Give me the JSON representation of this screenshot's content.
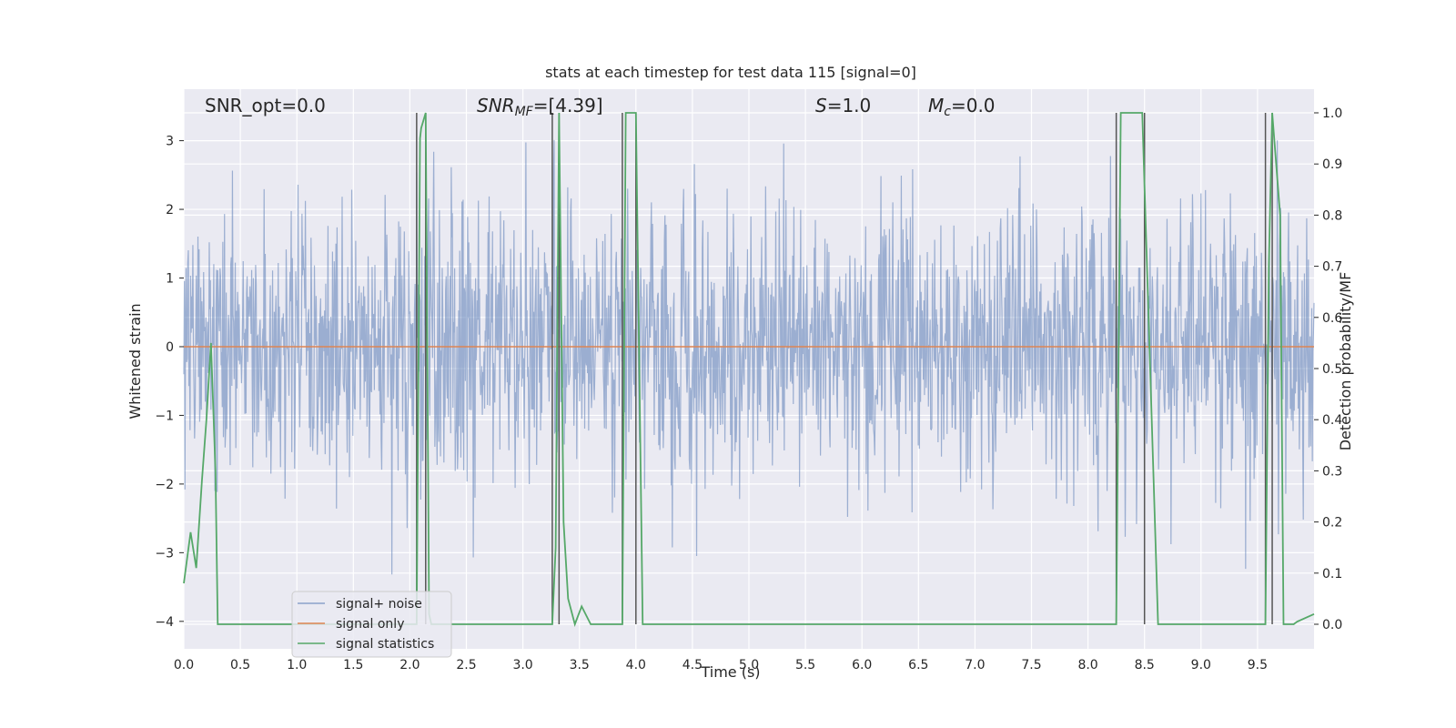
{
  "chart_data": {
    "type": "line",
    "title": "stats at each timestep for test data 115 [signal=0]",
    "xlabel": "Time (s)",
    "ylabel": "Whitened strain",
    "y2label": "Detection probability/MF",
    "xlim": [
      0.0,
      10.0
    ],
    "ylim": [
      -4.4,
      3.75
    ],
    "y2lim": [
      -0.048,
      1.0
    ],
    "x_ticks": [
      "0.0",
      "0.5",
      "1.0",
      "1.5",
      "2.0",
      "2.5",
      "3.0",
      "3.5",
      "4.0",
      "4.5",
      "5.0",
      "5.5",
      "6.0",
      "6.5",
      "7.0",
      "7.5",
      "8.0",
      "8.5",
      "9.0",
      "9.5"
    ],
    "y_ticks": [
      "3",
      "2",
      "1",
      "0",
      "−1",
      "−2",
      "−3",
      "−4"
    ],
    "y2_ticks": [
      "1.0",
      "0.9",
      "0.8",
      "0.7",
      "0.6",
      "0.5",
      "0.4",
      "0.3",
      "0.2",
      "0.1",
      "0.0"
    ],
    "grid": true,
    "legend_position": "lower-left",
    "colors": {
      "background": "#eaeaf2",
      "noise": "#4c72b0",
      "signal": "#dd8452",
      "stats": "#55a868",
      "vlines": "#555555"
    },
    "annotations": {
      "snr_opt": "SNR_opt=0.0",
      "snr_mf_base": "SNR",
      "snr_mf_sub": "MF",
      "snr_mf_value": "=[4.39]",
      "s_sym": "S",
      "s_value": "=1.0",
      "mc_sym": "M",
      "mc_sub": "c",
      "mc_value": "=0.0"
    },
    "series": [
      {
        "name": "signal+ noise",
        "axis": "left",
        "note": "whitened strain noise, approx. Gaussian, range about -4 to 3.2",
        "sample_rate": 200,
        "std": 1.0
      },
      {
        "name": "signal only",
        "axis": "left",
        "x": [
          0.0,
          10.0
        ],
        "y": [
          0.0,
          0.0
        ]
      },
      {
        "name": "signal statistics",
        "axis": "right",
        "x": [
          0.0,
          0.06,
          0.11,
          0.16,
          0.2,
          0.24,
          0.28,
          0.3,
          2.06,
          2.09,
          2.1,
          2.14,
          2.17,
          2.19,
          3.26,
          3.29,
          3.32,
          3.36,
          3.4,
          3.46,
          3.52,
          3.6,
          3.88,
          3.91,
          3.94,
          4.0,
          4.06,
          8.25,
          8.29,
          8.48,
          8.62,
          9.57,
          9.6,
          9.63,
          9.7,
          9.73,
          9.78,
          9.82,
          9.85,
          10.0
        ],
        "y": [
          0.08,
          0.18,
          0.11,
          0.28,
          0.4,
          0.55,
          0.3,
          0.0,
          0.0,
          0.95,
          0.97,
          1.0,
          0.02,
          0.0,
          0.0,
          0.15,
          1.0,
          0.2,
          0.05,
          0.0,
          0.035,
          0.0,
          0.0,
          1.0,
          1.0,
          1.0,
          0.0,
          0.0,
          1.0,
          1.0,
          0.0,
          0.0,
          0.7,
          1.0,
          0.8,
          0.0,
          0.0,
          0.0,
          0.005,
          0.02
        ]
      }
    ],
    "vlines": [
      2.06,
      2.14,
      3.26,
      3.32,
      3.88,
      4.0,
      8.25,
      8.5,
      9.57,
      9.63
    ],
    "legend": [
      "signal+ noise",
      "signal only",
      "signal statistics"
    ]
  }
}
